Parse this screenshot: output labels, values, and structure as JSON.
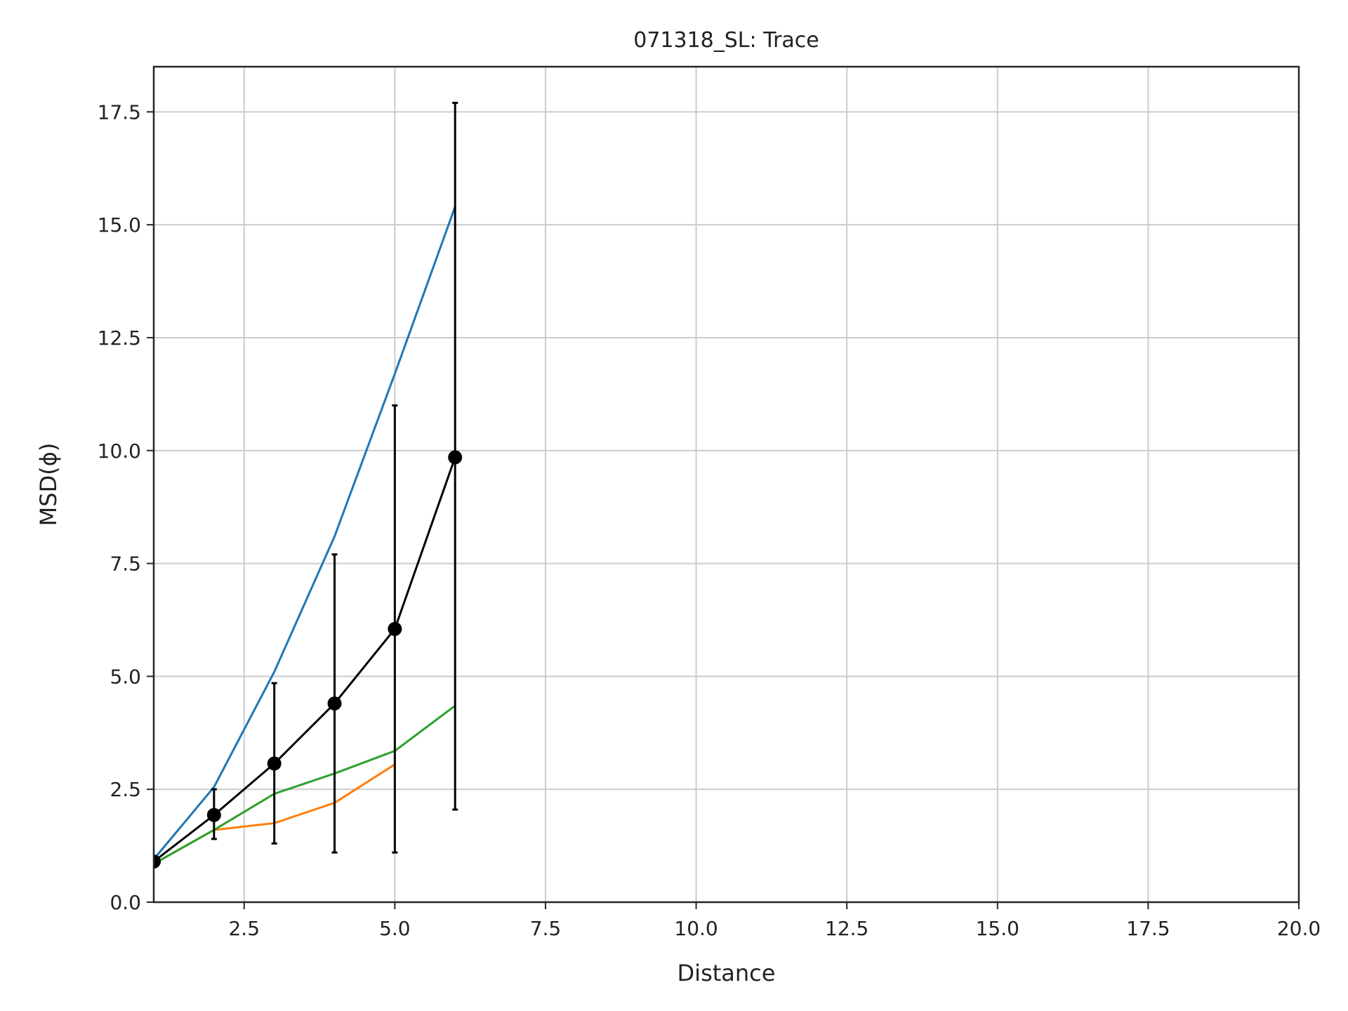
{
  "chart_data": {
    "type": "line",
    "title": "071318_SL: Trace",
    "xlabel": "Distance",
    "ylabel": "MSD(ϕ)",
    "xlim": [
      1,
      20
    ],
    "ylim": [
      0,
      18.5
    ],
    "xticks": [
      2.5,
      5.0,
      7.5,
      10.0,
      12.5,
      15.0,
      17.5,
      20.0
    ],
    "xtick_labels": [
      "2.5",
      "5.0",
      "7.5",
      "10.0",
      "12.5",
      "15.0",
      "17.5",
      "20.0"
    ],
    "yticks": [
      0.0,
      2.5,
      5.0,
      7.5,
      10.0,
      12.5,
      15.0,
      17.5
    ],
    "ytick_labels": [
      "0.0",
      "2.5",
      "5.0",
      "7.5",
      "10.0",
      "12.5",
      "15.0",
      "17.5"
    ],
    "grid": true,
    "series": [
      {
        "color": "#1f77b4",
        "x": [
          1,
          2,
          3,
          4,
          5,
          6
        ],
        "y": [
          0.95,
          2.55,
          5.1,
          8.1,
          11.7,
          15.4
        ]
      },
      {
        "color": "#ff7f0e",
        "x": [
          1,
          2,
          3,
          4,
          5
        ],
        "y": [
          0.85,
          1.6,
          1.75,
          2.2,
          3.05
        ]
      },
      {
        "color": "#2ca02c",
        "x": [
          1,
          2,
          3,
          4,
          5,
          6
        ],
        "y": [
          0.85,
          1.6,
          2.4,
          2.85,
          3.35,
          4.35
        ]
      },
      {
        "color": "#000000",
        "markers": true,
        "x": [
          1,
          2,
          3,
          4,
          5,
          6
        ],
        "y": [
          0.9,
          1.93,
          3.07,
          4.4,
          6.05,
          9.85
        ],
        "err_low": [
          0.9,
          1.4,
          1.3,
          1.1,
          1.1,
          2.05
        ],
        "err_high": [
          0.9,
          2.5,
          4.85,
          7.7,
          11.0,
          17.7
        ]
      }
    ]
  }
}
